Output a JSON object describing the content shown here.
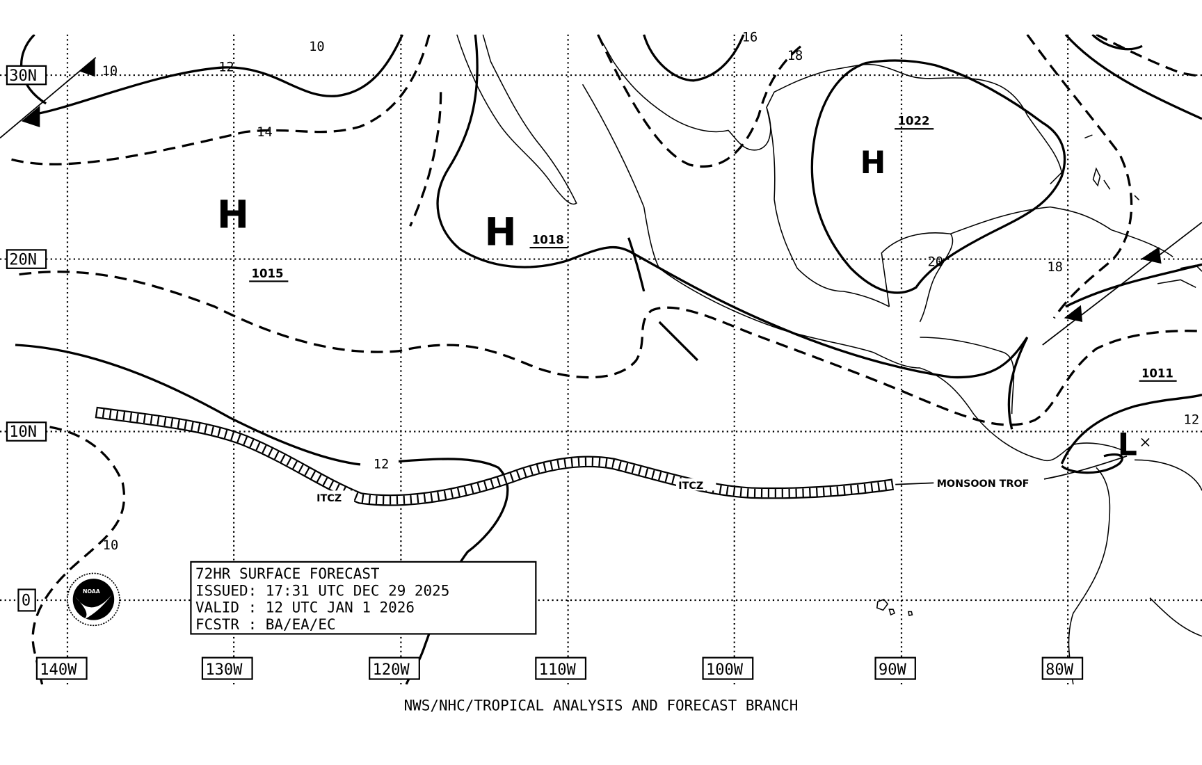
{
  "map": {
    "latitude_labels": [
      "30N",
      "20N",
      "10N",
      "0"
    ],
    "longitude_labels": [
      "140W",
      "130W",
      "120W",
      "110W",
      "100W",
      "90W",
      "80W"
    ],
    "pressure_centers": [
      {
        "type": "H",
        "value": "1015"
      },
      {
        "type": "H",
        "value": "1018"
      },
      {
        "type": "H",
        "value": "1022"
      },
      {
        "type": "L",
        "value": "1011"
      }
    ],
    "isobar_labels": [
      "10",
      "10",
      "12",
      "14",
      "16",
      "18",
      "18",
      "20",
      "12",
      "10",
      "12"
    ],
    "features": {
      "itcz_label_1": "ITCZ",
      "itcz_label_2": "ITCZ",
      "monsoon_trough_label": "MONSOON TROF"
    },
    "info_box": {
      "line1": "72HR SURFACE FORECAST",
      "line2": "ISSUED: 17:31 UTC DEC 29 2025",
      "line3": "VALID : 12 UTC JAN 1 2026",
      "line4": "FCSTR : BA/EA/EC"
    },
    "logo_text": "NOAA",
    "footer": "NWS/NHC/TROPICAL ANALYSIS AND FORECAST BRANCH"
  }
}
